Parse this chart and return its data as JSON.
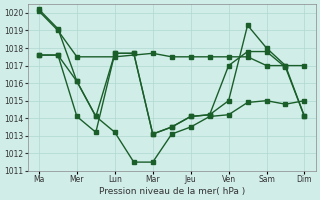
{
  "background_color": "#d0ede8",
  "grid_color": "#b0d8d0",
  "line_color": "#1a5e2a",
  "marker_color": "#1a5e2a",
  "title": "Pression niveau de la mer( hPa )",
  "ylim": [
    1011,
    1020.5
  ],
  "yticks": [
    1011,
    1012,
    1013,
    1014,
    1015,
    1016,
    1017,
    1018,
    1019,
    1020
  ],
  "xtick_labels": [
    "Ma",
    "Mer",
    "Lun",
    "Mar",
    "Jeu",
    "Ven",
    "Sam",
    "Dim"
  ],
  "xtick_positions": [
    0,
    1,
    2,
    3,
    4,
    5,
    6,
    7
  ],
  "series1": {
    "x": [
      0,
      0.5,
      1,
      2,
      3,
      3.5,
      4,
      4.5,
      5,
      5.5,
      6,
      6.5,
      7
    ],
    "y": [
      1020.1,
      1019.0,
      1017.5,
      1017.5,
      1017.7,
      1017.5,
      1017.5,
      1017.5,
      1017.5,
      1017.5,
      1017.0,
      1017.0,
      1017.0
    ]
  },
  "series2": {
    "x": [
      0,
      0.5,
      1,
      1.5,
      2,
      2.5,
      3,
      3.5,
      4,
      4.5,
      5,
      5.5,
      6,
      6.5,
      7
    ],
    "y": [
      1020.2,
      1019.1,
      1016.1,
      1014.1,
      1013.2,
      1011.5,
      1011.5,
      1013.1,
      1013.5,
      1014.1,
      1014.2,
      1014.9,
      1015.0,
      1014.8,
      1015.0
    ]
  },
  "series3": {
    "x": [
      0,
      0.5,
      1,
      1.5,
      2,
      2.5,
      3,
      3.5,
      4,
      4.5,
      5,
      5.5,
      6,
      6.5,
      7
    ],
    "y": [
      1017.6,
      1017.6,
      1016.1,
      1014.1,
      1017.7,
      1017.7,
      1013.1,
      1013.5,
      1014.1,
      1014.2,
      1015.0,
      1019.3,
      1018.0,
      1017.0,
      1014.1
    ]
  },
  "series4": {
    "x": [
      0,
      0.5,
      1,
      1.5,
      2,
      2.5,
      3,
      3.5,
      4,
      4.5,
      5,
      5.5,
      6,
      6.5,
      7
    ],
    "y": [
      1017.6,
      1017.6,
      1014.1,
      1013.2,
      1017.7,
      1017.7,
      1013.1,
      1013.5,
      1014.1,
      1014.2,
      1017.0,
      1017.8,
      1017.8,
      1016.9,
      1014.1
    ]
  }
}
